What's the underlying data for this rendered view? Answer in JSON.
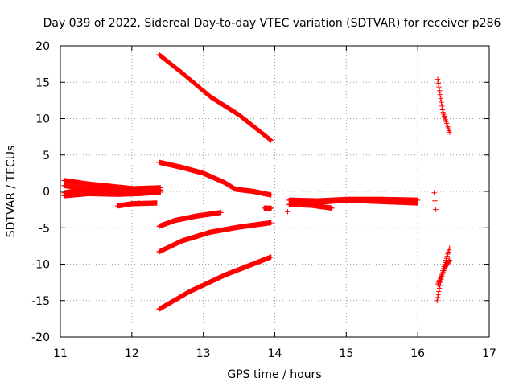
{
  "chart_data": {
    "type": "scatter",
    "title": "Day 039 of 2022, Sidereal Day-to-day VTEC variation (SDTVAR) for receiver p286",
    "xlabel": "GPS time / hours",
    "ylabel": "SDTVAR / TECUs",
    "xlim": [
      11,
      17
    ],
    "ylim": [
      -20,
      20
    ],
    "xticks": [
      "11",
      "12",
      "13",
      "14",
      "15",
      "16",
      "17"
    ],
    "yticks": [
      "20",
      "15",
      "10",
      "5",
      "0",
      "-5",
      "-10",
      "-15",
      "-20"
    ],
    "grid": true,
    "marker": "plus",
    "color": "#ff0000",
    "tracks": [
      {
        "x0": 11.05,
        "x1": 12.4,
        "points": [
          [
            11.05,
            1.5
          ],
          [
            11.4,
            1.0
          ],
          [
            11.8,
            0.6
          ],
          [
            12.1,
            0.3
          ],
          [
            12.4,
            0.2
          ]
        ]
      },
      {
        "x0": 11.05,
        "x1": 12.4,
        "points": [
          [
            11.05,
            0.8
          ],
          [
            11.4,
            0.3
          ],
          [
            11.8,
            0.0
          ],
          [
            12.1,
            -0.2
          ],
          [
            12.4,
            0.2
          ]
        ]
      },
      {
        "x0": 11.05,
        "x1": 12.4,
        "points": [
          [
            11.05,
            -0.6
          ],
          [
            11.4,
            -0.3
          ],
          [
            11.8,
            -0.4
          ],
          [
            12.1,
            -0.3
          ],
          [
            12.4,
            -0.1
          ]
        ]
      },
      {
        "x0": 11.05,
        "x1": 12.4,
        "points": [
          [
            11.05,
            -0.2
          ],
          [
            11.4,
            0.4
          ],
          [
            11.8,
            0.2
          ],
          [
            12.1,
            0.4
          ],
          [
            12.4,
            0.5
          ]
        ]
      },
      {
        "x0": 11.8,
        "x1": 12.35,
        "points": [
          [
            11.8,
            -2.0
          ],
          [
            12.0,
            -1.7
          ],
          [
            12.35,
            -1.6
          ]
        ]
      },
      {
        "x0": 12.38,
        "x1": 13.95,
        "points": [
          [
            12.38,
            18.8
          ],
          [
            12.7,
            16.3
          ],
          [
            13.1,
            13.0
          ],
          [
            13.5,
            10.5
          ],
          [
            13.95,
            7.0
          ]
        ]
      },
      {
        "x0": 12.38,
        "x1": 13.95,
        "points": [
          [
            12.38,
            4.0
          ],
          [
            12.7,
            3.3
          ],
          [
            13.0,
            2.5
          ],
          [
            13.3,
            1.2
          ],
          [
            13.45,
            0.3
          ],
          [
            13.7,
            0.0
          ],
          [
            13.95,
            -0.5
          ]
        ]
      },
      {
        "x0": 12.38,
        "x1": 13.25,
        "points": [
          [
            12.38,
            -4.8
          ],
          [
            12.6,
            -4.0
          ],
          [
            12.9,
            -3.4
          ],
          [
            13.25,
            -2.9
          ]
        ]
      },
      {
        "x0": 12.38,
        "x1": 13.95,
        "points": [
          [
            12.38,
            -8.3
          ],
          [
            12.7,
            -6.8
          ],
          [
            13.1,
            -5.6
          ],
          [
            13.5,
            -4.9
          ],
          [
            13.95,
            -4.3
          ]
        ]
      },
      {
        "x0": 12.38,
        "x1": 13.95,
        "points": [
          [
            12.38,
            -16.2
          ],
          [
            12.8,
            -13.8
          ],
          [
            13.3,
            -11.5
          ],
          [
            13.95,
            -9.0
          ]
        ]
      },
      {
        "x0": 13.85,
        "x1": 13.95,
        "points": [
          [
            13.85,
            -2.3
          ],
          [
            13.95,
            -2.3
          ]
        ]
      },
      {
        "x0": 14.2,
        "x1": 16.0,
        "points": [
          [
            14.2,
            -1.2
          ],
          [
            14.6,
            -1.3
          ],
          [
            15.0,
            -1.1
          ],
          [
            15.5,
            -1.1
          ],
          [
            16.0,
            -1.2
          ]
        ]
      },
      {
        "x0": 14.2,
        "x1": 16.0,
        "points": [
          [
            14.2,
            -1.6
          ],
          [
            14.6,
            -1.5
          ],
          [
            15.0,
            -1.2
          ],
          [
            15.5,
            -1.4
          ],
          [
            16.0,
            -1.6
          ]
        ]
      },
      {
        "x0": 14.2,
        "x1": 14.8,
        "points": [
          [
            14.2,
            -1.8
          ],
          [
            14.5,
            -1.9
          ],
          [
            14.8,
            -2.3
          ]
        ]
      },
      {
        "x0": 16.28,
        "x1": 16.45,
        "points": [
          [
            16.28,
            15.4
          ],
          [
            16.35,
            11.0
          ],
          [
            16.45,
            8.0
          ]
        ]
      },
      {
        "x0": 16.27,
        "x1": 16.45,
        "points": [
          [
            16.27,
            -15.0
          ],
          [
            16.35,
            -11.0
          ],
          [
            16.45,
            -7.6
          ]
        ]
      },
      {
        "x0": 16.28,
        "x1": 16.45,
        "points": [
          [
            16.28,
            -12.8
          ],
          [
            16.38,
            -10.5
          ],
          [
            16.45,
            -9.4
          ]
        ]
      }
    ],
    "scatter_points": [
      [
        14.18,
        -2.8
      ],
      [
        13.88,
        -2.3
      ],
      [
        13.93,
        -2.4
      ],
      [
        16.23,
        -0.2
      ],
      [
        16.24,
        -1.3
      ],
      [
        16.25,
        -2.5
      ],
      [
        12.33,
        0.5
      ],
      [
        12.2,
        0.6
      ],
      [
        12.1,
        -1.6
      ]
    ]
  }
}
